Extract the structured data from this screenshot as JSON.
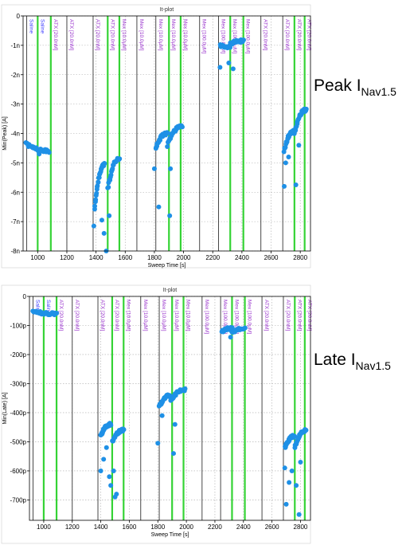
{
  "labels": {
    "peak": {
      "main": "Peak I",
      "sub": "Nav1.5"
    },
    "late": {
      "main": "Late I",
      "sub": "Nav1.5"
    }
  },
  "colors": {
    "points": "#1e90e6",
    "vline_black": "#333333",
    "vline_green": "#35d335",
    "condition_saline": "#3a3aff",
    "condition_drug": "#9933cc",
    "grid": "#aaaaaa"
  },
  "chart_data": [
    {
      "type": "scatter",
      "title": "It-plot",
      "xlabel": "Sweep Time [s]",
      "ylabel": "Min(Peak) [A]",
      "xlim": [
        900,
        2870
      ],
      "ylim": [
        -8,
        0
      ],
      "x_ticks": [
        "1000",
        "1200",
        "1400",
        "1600",
        "1800",
        "2000",
        "2200",
        "2400",
        "2600",
        "2800"
      ],
      "y_ticks": [
        "0",
        "-1n",
        "-2n",
        "-3n",
        "-4n",
        "-5n",
        "-6n",
        "-7n",
        "-8n"
      ],
      "grid": true,
      "condition_lines": [
        {
          "x": 925,
          "label": "Saline",
          "color": "black"
        },
        {
          "x": 1000,
          "label": "Saline",
          "color": "green"
        },
        {
          "x": 1090,
          "label": "ATX [20.0nM]",
          "color": "green"
        },
        {
          "x": 1200,
          "label": "ATX [20.0nM]",
          "color": "black"
        },
        {
          "x": 1380,
          "label": "ATX [20.0nM]",
          "color": "black"
        },
        {
          "x": 1480,
          "label": "ATX [20.0nM]",
          "color": "green"
        },
        {
          "x": 1560,
          "label": "Mex [10.0µM]",
          "color": "green"
        },
        {
          "x": 1680,
          "label": "Mex [10.0µM]",
          "color": "black"
        },
        {
          "x": 1810,
          "label": "Mex [10.0µM]",
          "color": "black"
        },
        {
          "x": 1900,
          "label": "Mex [10.0µM]",
          "color": "green"
        },
        {
          "x": 1980,
          "label": "Mex [10.0µM]",
          "color": "green"
        },
        {
          "x": 2110,
          "label": "Mex [100.0µM]",
          "color": "black"
        },
        {
          "x": 2240,
          "label": "Mex [100.0µM]",
          "color": "black"
        },
        {
          "x": 2320,
          "label": "Mex [100.0µM]",
          "color": "green"
        },
        {
          "x": 2410,
          "label": "Mex [100.0µM]",
          "color": "green"
        },
        {
          "x": 2530,
          "label": "ATX [20.0nM]",
          "color": "black"
        },
        {
          "x": 2680,
          "label": "ATX [20.0nM]",
          "color": "black"
        },
        {
          "x": 2760,
          "label": "ATX [20.0nM]",
          "color": "green"
        },
        {
          "x": 2830,
          "label": "ATX [20.0nM]",
          "color": "green"
        }
      ],
      "clusters": [
        {
          "x": [
            920,
            1080
          ],
          "y": [
            -4.35,
            -4.6
          ],
          "n": 30,
          "outliers": [
            [
              1010,
              -4.7
            ]
          ]
        },
        {
          "x": [
            1390,
            1460
          ],
          "y": [
            -6.6,
            -5.05
          ],
          "n": 28,
          "outliers": [
            [
              1385,
              -7.15
            ],
            [
              1440,
              -6.95
            ],
            [
              1455,
              -7.4
            ],
            [
              1470,
              -8.0
            ]
          ]
        },
        {
          "x": [
            1480,
            1560
          ],
          "y": [
            -5.9,
            -4.85
          ],
          "n": 24,
          "outliers": [
            [
              1490,
              -6.8
            ]
          ]
        },
        {
          "x": [
            1810,
            1890
          ],
          "y": [
            -4.5,
            -4.0
          ],
          "n": 26,
          "outliers": [
            [
              1800,
              -5.2
            ],
            [
              1830,
              -6.5
            ]
          ]
        },
        {
          "x": [
            1890,
            1990
          ],
          "y": [
            -4.4,
            -3.75
          ],
          "n": 24,
          "outliers": [
            [
              1905,
              -6.8
            ],
            [
              1910,
              -5.2
            ]
          ]
        },
        {
          "x": [
            2250,
            2320
          ],
          "y": [
            -1.0,
            -1.05
          ],
          "n": 22,
          "outliers": [
            [
              2250,
              -1.75
            ],
            [
              2310,
              -1.6
            ],
            [
              2340,
              -1.8
            ]
          ]
        },
        {
          "x": [
            2320,
            2410
          ],
          "y": [
            -0.95,
            -0.85
          ],
          "n": 20,
          "outliers": []
        },
        {
          "x": [
            2690,
            2760
          ],
          "y": [
            -4.6,
            -3.9
          ],
          "n": 26,
          "outliers": [
            [
              2690,
              -5.8
            ],
            [
              2700,
              -5.0
            ],
            [
              2720,
              -4.8
            ]
          ]
        },
        {
          "x": [
            2760,
            2840
          ],
          "y": [
            -4.0,
            -3.2
          ],
          "n": 24,
          "outliers": [
            [
              2770,
              -5.75
            ],
            [
              2790,
              -4.4
            ]
          ]
        }
      ]
    },
    {
      "type": "scatter",
      "title": "It-plot",
      "xlabel": "Sweep Time [s]",
      "ylabel": "Min(Late) [A]",
      "xlim": [
        900,
        2870
      ],
      "ylim": [
        -770,
        0
      ],
      "x_ticks": [
        "1000",
        "1200",
        "1400",
        "1600",
        "1800",
        "2000",
        "2200",
        "2400",
        "2600",
        "2800"
      ],
      "y_ticks": [
        "0",
        "-100p",
        "-200p",
        "-300p",
        "-400p",
        "-500p",
        "-600p",
        "-700p"
      ],
      "grid": true,
      "condition_lines": [
        {
          "x": 925,
          "label": "Saline",
          "color": "black"
        },
        {
          "x": 1000,
          "label": "Saline",
          "color": "green"
        },
        {
          "x": 1090,
          "label": "ATX [20.0nM]",
          "color": "green"
        },
        {
          "x": 1200,
          "label": "ATX [20.0nM]",
          "color": "black"
        },
        {
          "x": 1380,
          "label": "ATX [20.0nM]",
          "color": "black"
        },
        {
          "x": 1480,
          "label": "ATX [20.0nM]",
          "color": "green"
        },
        {
          "x": 1560,
          "label": "Mex [10.0µM]",
          "color": "green"
        },
        {
          "x": 1680,
          "label": "Mex [10.0µM]",
          "color": "black"
        },
        {
          "x": 1810,
          "label": "Mex [10.0µM]",
          "color": "black"
        },
        {
          "x": 1900,
          "label": "Mex [10.0µM]",
          "color": "green"
        },
        {
          "x": 1980,
          "label": "Mex [10.0µM]",
          "color": "green"
        },
        {
          "x": 2110,
          "label": "Mex [100.0µM]",
          "color": "black"
        },
        {
          "x": 2240,
          "label": "Mex [100.0µM]",
          "color": "black"
        },
        {
          "x": 2320,
          "label": "Mex [100.0µM]",
          "color": "green"
        },
        {
          "x": 2410,
          "label": "Mex [100.0µM]",
          "color": "green"
        },
        {
          "x": 2530,
          "label": "ATX [20.0nM]",
          "color": "black"
        },
        {
          "x": 2680,
          "label": "ATX [20.0nM]",
          "color": "black"
        },
        {
          "x": 2760,
          "label": "ATX [20.0nM]",
          "color": "green"
        },
        {
          "x": 2830,
          "label": "ATX [20.0nM]",
          "color": "green"
        }
      ],
      "clusters": [
        {
          "x": [
            925,
            1090
          ],
          "y": [
            -50,
            -60
          ],
          "n": 34,
          "outliers": []
        },
        {
          "x": [
            1400,
            1470
          ],
          "y": [
            -480,
            -440
          ],
          "n": 28,
          "outliers": [
            [
              1400,
              -600
            ],
            [
              1420,
              -560
            ],
            [
              1440,
              -520
            ],
            [
              1460,
              -620
            ],
            [
              1470,
              -650
            ]
          ]
        },
        {
          "x": [
            1480,
            1560
          ],
          "y": [
            -500,
            -460
          ],
          "n": 26,
          "outliers": [
            [
              1490,
              -600
            ],
            [
              1500,
              -690
            ],
            [
              1510,
              -680
            ]
          ]
        },
        {
          "x": [
            1810,
            1890
          ],
          "y": [
            -380,
            -340
          ],
          "n": 26,
          "outliers": [
            [
              1800,
              -505
            ],
            [
              1830,
              -410
            ]
          ]
        },
        {
          "x": [
            1890,
            1990
          ],
          "y": [
            -360,
            -320
          ],
          "n": 24,
          "outliers": [
            [
              1910,
              -540
            ],
            [
              1920,
              -440
            ]
          ]
        },
        {
          "x": [
            2250,
            2320
          ],
          "y": [
            -120,
            -110
          ],
          "n": 24,
          "outliers": [
            [
              2310,
              -140
            ]
          ]
        },
        {
          "x": [
            2320,
            2410
          ],
          "y": [
            -125,
            -110
          ],
          "n": 22,
          "outliers": []
        },
        {
          "x": [
            2690,
            2760
          ],
          "y": [
            -520,
            -480
          ],
          "n": 26,
          "outliers": [
            [
              2690,
              -590
            ],
            [
              2700,
              -715
            ],
            [
              2720,
              -640
            ],
            [
              2740,
              -600
            ]
          ]
        },
        {
          "x": [
            2760,
            2840
          ],
          "y": [
            -520,
            -460
          ],
          "n": 26,
          "outliers": [
            [
              2770,
              -650
            ],
            [
              2790,
              -750
            ],
            [
              2800,
              -570
            ]
          ]
        }
      ]
    }
  ]
}
